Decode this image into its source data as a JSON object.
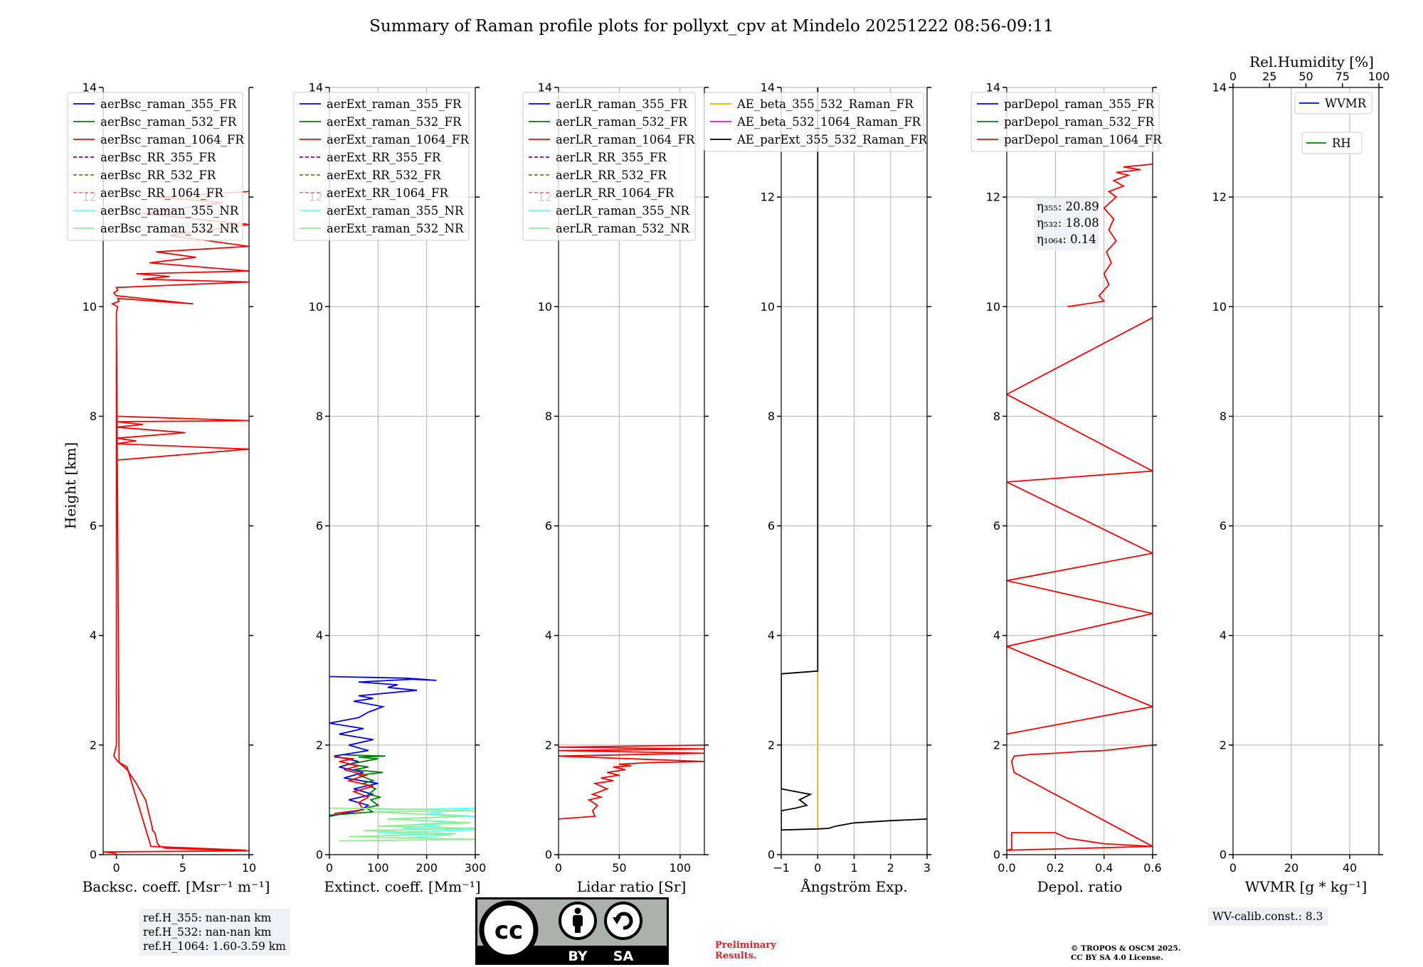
{
  "title": "Summary of Raman profile plots for pollyxt_cpv at Mindelo 20251222 08:56-09:11",
  "ylabel": "Height [km]",
  "chart_data": [
    {
      "type": "line",
      "xlabel": "Backsc. coeff. [Msr⁻¹ m⁻¹]",
      "xlim": [
        -1,
        10
      ],
      "ylim": [
        0,
        14
      ],
      "xticks": [
        0,
        5,
        10
      ],
      "yticks": [
        0,
        2,
        4,
        6,
        8,
        10,
        12,
        14
      ],
      "grid": false,
      "legend_position": "top-left",
      "legend": [
        {
          "name": "aerBsc_raman_355_FR",
          "color": "#0000ff",
          "style": "solid"
        },
        {
          "name": "aerBsc_raman_532_FR",
          "color": "#008000",
          "style": "solid"
        },
        {
          "name": "aerBsc_raman_1064_FR",
          "color": "#ff0000",
          "style": "solid"
        },
        {
          "name": "aerBsc_RR_355_FR",
          "color": "#8b008b",
          "style": "dashed"
        },
        {
          "name": "aerBsc_RR_532_FR",
          "color": "#808000",
          "style": "dashed"
        },
        {
          "name": "aerBsc_RR_1064_FR",
          "color": "#f08080",
          "style": "dashed"
        },
        {
          "name": "aerBsc_raman_355_NR",
          "color": "#66ffff",
          "style": "solid"
        },
        {
          "name": "aerBsc_raman_532_NR",
          "color": "#90ee90",
          "style": "solid"
        }
      ],
      "series": [
        {
          "name": "aerBsc_raman_1064_FR",
          "color": "#ff0000",
          "x": [
            9.8,
            2.6,
            0.8,
            0.1,
            -0.2,
            0,
            0,
            0.2,
            0.8,
            1.5,
            2.2,
            2.6,
            2.7,
            2.7,
            2.9,
            3.0,
            3.1,
            3.3,
            3.7,
            6.0,
            10,
            -1.0,
            0
          ],
          "y": [
            0.08,
            0.15,
            1.6,
            1.7,
            1.8,
            2.0,
            9.9,
            1.68,
            1.55,
            1.3,
            1.0,
            0.6,
            0.5,
            0.45,
            0.4,
            0.3,
            0.2,
            0.15,
            0.12,
            0.1,
            0.07,
            0.05,
            0.02
          ]
        },
        {
          "name": "aerBsc_raman_1064_FR_upper",
          "color": "#ff0000",
          "x": [
            0,
            0.1,
            -0.3,
            0.2,
            0.1,
            5.8,
            0,
            -0.2,
            0.1,
            0,
            10,
            2,
            4,
            1.5,
            10,
            2.5,
            6,
            3,
            10,
            4,
            10,
            2,
            8,
            3,
            10
          ],
          "y": [
            9.9,
            10.0,
            10.05,
            10.1,
            10.15,
            10.05,
            10.2,
            10.25,
            10.3,
            10.35,
            10.45,
            10.5,
            10.55,
            10.6,
            10.65,
            10.8,
            10.9,
            11.0,
            11.1,
            11.3,
            11.5,
            11.7,
            11.9,
            12.0,
            12.1
          ]
        },
        {
          "name": "aerBsc_raman_1064_FR_spikes",
          "color": "#ff0000",
          "x": [
            0,
            10,
            0,
            1.5,
            0,
            5.2,
            0,
            2.0,
            0,
            10,
            0
          ],
          "y": [
            7.2,
            7.4,
            7.5,
            7.55,
            7.6,
            7.7,
            7.8,
            7.85,
            7.9,
            7.92,
            8.0
          ]
        }
      ]
    },
    {
      "type": "line",
      "xlabel": "Extinct. coeff. [Mm⁻¹]",
      "xlim": [
        0,
        300
      ],
      "ylim": [
        0,
        14
      ],
      "xticks": [
        0,
        100,
        200,
        300
      ],
      "yticks": [
        0,
        2,
        4,
        6,
        8,
        10,
        12,
        14
      ],
      "grid": true,
      "legend_position": "top-left",
      "legend": [
        {
          "name": "aerExt_raman_355_FR",
          "color": "#0000ff",
          "style": "solid"
        },
        {
          "name": "aerExt_raman_532_FR",
          "color": "#008000",
          "style": "solid"
        },
        {
          "name": "aerExt_raman_1064_FR",
          "color": "#ff0000",
          "style": "solid"
        },
        {
          "name": "aerExt_RR_355_FR",
          "color": "#8b008b",
          "style": "dashed"
        },
        {
          "name": "aerExt_RR_532_FR",
          "color": "#808000",
          "style": "dashed"
        },
        {
          "name": "aerExt_RR_1064_FR",
          "color": "#f08080",
          "style": "dashed"
        },
        {
          "name": "aerExt_raman_355_NR",
          "color": "#66ffff",
          "style": "solid"
        },
        {
          "name": "aerExt_raman_532_NR",
          "color": "#90ee90",
          "style": "solid"
        }
      ],
      "series": [
        {
          "name": "aerExt_raman_355_FR",
          "color": "#0000ff",
          "x": [
            0,
            60,
            80,
            40,
            90,
            50,
            100,
            30,
            70,
            20,
            60,
            10,
            80,
            40,
            90,
            20,
            70,
            0,
            60,
            80,
            110,
            50,
            90,
            60,
            180,
            120,
            140,
            60,
            170,
            220,
            160,
            0
          ],
          "y": [
            0.7,
            0.8,
            0.9,
            1.0,
            1.1,
            1.2,
            1.3,
            1.4,
            1.5,
            1.6,
            1.7,
            1.8,
            1.9,
            2.0,
            2.1,
            2.2,
            2.3,
            2.4,
            2.5,
            2.6,
            2.7,
            2.8,
            2.85,
            2.9,
            3.0,
            3.05,
            3.1,
            3.15,
            3.2,
            3.18,
            3.22,
            3.25
          ]
        },
        {
          "name": "aerExt_raman_532_FR",
          "color": "#008000",
          "x": [
            0,
            90,
            75,
            100,
            85,
            105,
            80,
            95,
            70,
            90,
            60,
            110,
            50,
            80,
            40,
            100,
            60,
            115,
            30
          ],
          "y": [
            0.72,
            0.78,
            0.85,
            0.9,
            1.0,
            1.05,
            1.1,
            1.2,
            1.3,
            1.35,
            1.45,
            1.5,
            1.55,
            1.6,
            1.65,
            1.75,
            1.78,
            1.8,
            1.82
          ]
        },
        {
          "name": "aerExt_raman_1064_FR",
          "color": "#ff0000",
          "x": [
            10,
            70,
            60,
            80,
            50,
            90,
            40,
            75,
            30,
            60,
            20,
            50,
            10
          ],
          "y": [
            0.75,
            0.82,
            0.95,
            1.05,
            1.15,
            1.25,
            1.35,
            1.45,
            1.55,
            1.62,
            1.7,
            1.75,
            1.78
          ]
        },
        {
          "name": "aerExt_raman_355_NR",
          "color": "#66ffff",
          "x": [
            100,
            300,
            200,
            300,
            120,
            260,
            180,
            230,
            150,
            300,
            100,
            250,
            200,
            140
          ],
          "y": [
            0.82,
            0.85,
            0.75,
            0.7,
            0.65,
            0.6,
            0.55,
            0.52,
            0.48,
            0.45,
            0.4,
            0.36,
            0.33,
            0.3
          ]
        },
        {
          "name": "aerExt_raman_532_NR",
          "color": "#90ee90",
          "x": [
            0,
            100,
            300,
            90,
            280,
            120,
            290,
            100,
            300,
            70,
            260,
            40,
            300,
            20
          ],
          "y": [
            0.85,
            0.84,
            0.8,
            0.78,
            0.7,
            0.65,
            0.58,
            0.52,
            0.48,
            0.44,
            0.38,
            0.33,
            0.28,
            0.25
          ]
        }
      ]
    },
    {
      "type": "line",
      "xlabel": "Lidar ratio [Sr]",
      "xlim": [
        0,
        120
      ],
      "ylim": [
        0,
        14
      ],
      "xticks": [
        0,
        50,
        100
      ],
      "yticks": [
        0,
        2,
        4,
        6,
        8,
        10,
        12,
        14
      ],
      "grid": true,
      "legend_position": "top-left",
      "legend": [
        {
          "name": "aerLR_raman_355_FR",
          "color": "#0000ff",
          "style": "solid"
        },
        {
          "name": "aerLR_raman_532_FR",
          "color": "#008000",
          "style": "solid"
        },
        {
          "name": "aerLR_raman_1064_FR",
          "color": "#ff0000",
          "style": "solid"
        },
        {
          "name": "aerLR_RR_355_FR",
          "color": "#8b008b",
          "style": "dashed"
        },
        {
          "name": "aerLR_RR_532_FR",
          "color": "#808000",
          "style": "dashed"
        },
        {
          "name": "aerLR_RR_1064_FR",
          "color": "#f08080",
          "style": "dashed"
        },
        {
          "name": "aerLR_raman_355_NR",
          "color": "#66ffff",
          "style": "solid"
        },
        {
          "name": "aerLR_raman_532_NR",
          "color": "#90ee90",
          "style": "solid"
        }
      ],
      "series": [
        {
          "name": "aerLR_raman_1064_FR",
          "color": "#ff0000",
          "x": [
            0,
            30,
            28,
            32,
            25,
            35,
            28,
            40,
            30,
            45,
            35,
            50,
            40,
            55,
            45,
            60,
            50,
            75,
            120,
            0,
            120,
            0,
            120,
            0,
            120
          ],
          "y": [
            0.65,
            0.7,
            0.8,
            0.9,
            1.0,
            1.05,
            1.1,
            1.2,
            1.3,
            1.35,
            1.4,
            1.45,
            1.5,
            1.55,
            1.6,
            1.62,
            1.65,
            1.68,
            1.7,
            1.8,
            1.85,
            1.9,
            1.93,
            1.96,
            2.0
          ]
        }
      ]
    },
    {
      "type": "line",
      "xlabel": "Ångström Exp.",
      "xlim": [
        -1,
        3
      ],
      "ylim": [
        0,
        14
      ],
      "xticks": [
        -1,
        0,
        1,
        2,
        3
      ],
      "yticks": [
        0,
        2,
        4,
        6,
        8,
        10,
        12,
        14
      ],
      "grid": true,
      "legend_position": "top-right",
      "legend": [
        {
          "name": "AE_beta_355_532_Raman_FR",
          "color": "#ffa500",
          "style": "solid"
        },
        {
          "name": "AE_beta_532_1064_Raman_FR",
          "color": "#ff00ff",
          "style": "solid"
        },
        {
          "name": "AE_parExt_355_532_Raman_FR",
          "color": "#000000",
          "style": "solid"
        }
      ],
      "series": [
        {
          "name": "AE_beta_355_532_Raman_FR",
          "color": "#ffa500",
          "x": [
            0,
            0
          ],
          "y": [
            0.45,
            3.35
          ]
        },
        {
          "name": "AE_parExt_355_532_Raman_FR",
          "color": "#000000",
          "x": [
            0,
            0,
            -1,
            -1,
            -0.2,
            -0.5,
            -0.3,
            -0.6,
            -1,
            -1,
            0,
            0.3,
            0.5,
            1.0,
            2.0,
            3.0
          ],
          "y": [
            14,
            3.35,
            3.3,
            1.2,
            1.1,
            1.0,
            0.9,
            0.85,
            0.8,
            0.45,
            0.47,
            0.48,
            0.52,
            0.58,
            0.62,
            0.65
          ]
        }
      ]
    },
    {
      "type": "line",
      "xlabel": "Depol. ratio",
      "xlim": [
        0,
        0.6
      ],
      "ylim": [
        0,
        14
      ],
      "xticks": [
        0.0,
        0.2,
        0.4,
        0.6
      ],
      "yticks": [
        0,
        2,
        4,
        6,
        8,
        10,
        12,
        14
      ],
      "grid": true,
      "legend_position": "top-left",
      "legend": [
        {
          "name": "parDepol_raman_355_FR",
          "color": "#0000ff",
          "style": "solid"
        },
        {
          "name": "parDepol_raman_532_FR",
          "color": "#008000",
          "style": "solid"
        },
        {
          "name": "parDepol_raman_1064_FR",
          "color": "#ff0000",
          "style": "solid"
        }
      ],
      "annotations": [
        "η₃₅₅: 20.89",
        "η₅₃₂: 18.08",
        "η₁₀₆₄: 0.14"
      ],
      "series": [
        {
          "name": "parDepol_raman_1064_FR",
          "color": "#ff0000",
          "x": [
            0.6,
            0,
            0.02,
            0.02,
            0.2,
            0.25,
            0.4,
            0.6,
            0.03,
            0.02,
            0.03,
            0.1,
            0.2,
            0.3,
            0.4,
            0.5,
            0.6
          ],
          "y": [
            0.15,
            0.08,
            0.1,
            0.4,
            0.4,
            0.3,
            0.2,
            0.15,
            1.5,
            1.7,
            1.8,
            1.83,
            1.85,
            1.88,
            1.9,
            1.95,
            2.0
          ]
        },
        {
          "name": "parDepol_raman_1064_FR_upper",
          "color": "#ff0000",
          "x": [
            0.25,
            0.4,
            0.38,
            0.42,
            0.4,
            0.43,
            0.41,
            0.45,
            0.42,
            0.44,
            0.4,
            0.45,
            0.42,
            0.48,
            0.44,
            0.5,
            0.45,
            0.55,
            0.48,
            0.6
          ],
          "y": [
            10.0,
            10.1,
            10.2,
            10.4,
            10.6,
            10.8,
            11.0,
            11.2,
            11.4,
            11.6,
            11.8,
            12.0,
            12.1,
            12.2,
            12.3,
            12.4,
            12.45,
            12.5,
            12.55,
            12.6
          ]
        },
        {
          "name": "parDepol_raman_1064_FR_noise",
          "color": "#ff0000",
          "x": [
            0,
            0.6,
            0,
            0.6,
            0,
            0.6,
            0,
            0.6,
            0,
            0.6
          ],
          "y": [
            2.2,
            2.7,
            3.8,
            4.4,
            5.0,
            5.5,
            6.8,
            7.0,
            8.4,
            9.8
          ]
        }
      ]
    },
    {
      "type": "line",
      "xlabel": "WVMR [g * kg⁻¹]",
      "xlim": [
        0,
        50
      ],
      "ylim": [
        0,
        14
      ],
      "xticks": [
        0,
        20,
        40
      ],
      "yticks": [
        0,
        2,
        4,
        6,
        8,
        10,
        12,
        14
      ],
      "grid": true,
      "legend_position": "top-right",
      "top_axis": {
        "label": "Rel.Humidity [%]",
        "xlim": [
          0,
          100
        ],
        "xticks": [
          0,
          25,
          50,
          75,
          100
        ]
      },
      "legend": [
        {
          "name": "WVMR",
          "color": "#0000ff",
          "style": "solid"
        },
        {
          "name": "RH",
          "color": "#008000",
          "style": "solid"
        }
      ],
      "series": []
    }
  ],
  "info": {
    "ref_h_355": "ref.H_355: nan-nan km",
    "ref_h_532": "ref.H_532: nan-nan km",
    "ref_h_1064": "ref.H_1064: 1.60-3.59 km",
    "wv_calib": "WV-calib.const.: 8.3",
    "preliminary": "Preliminary Results.",
    "copyright_1": "© TROPOS & OSCM 2025.",
    "copyright_2": "CC BY SA 4.0 License.",
    "cc_by": "BY",
    "cc_sa": "SA",
    "cc_mark": "cc"
  }
}
